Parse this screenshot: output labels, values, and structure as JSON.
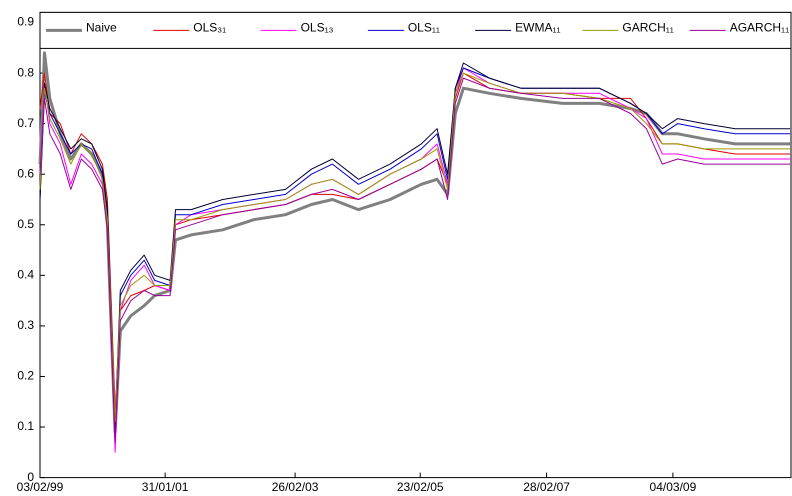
{
  "chart_data": {
    "type": "line",
    "x": [
      "03/02/99",
      "01/03/99",
      "01/04/99",
      "01/06/99",
      "01/08/99",
      "01/10/99",
      "01/12/99",
      "01/02/00",
      "01/03/00",
      "15/04/00",
      "15/05/00",
      "15/07/00",
      "01/10/00",
      "01/12/00",
      "01/03/01",
      "01/04/01",
      "01/07/01",
      "01/01/02",
      "01/07/02",
      "01/01/03",
      "01/06/03",
      "01/10/03",
      "01/03/04",
      "01/09/04",
      "01/03/05",
      "01/06/05",
      "01/08/05",
      "15/09/05",
      "01/11/05",
      "01/04/06",
      "01/10/06",
      "01/06/07",
      "01/01/08",
      "01/07/08",
      "01/10/08",
      "01/01/09",
      "01/04/09",
      "01/09/09",
      "01/03/10",
      "01/09/10",
      "15/01/11"
    ],
    "series": [
      {
        "name": "Naive",
        "color": "#808080",
        "values": [
          0.62,
          0.84,
          0.75,
          0.68,
          0.63,
          0.66,
          0.64,
          0.6,
          0.5,
          0.09,
          0.29,
          0.32,
          0.34,
          0.36,
          0.37,
          0.47,
          0.48,
          0.49,
          0.51,
          0.52,
          0.54,
          0.55,
          0.53,
          0.55,
          0.58,
          0.59,
          0.56,
          0.72,
          0.77,
          0.76,
          0.75,
          0.74,
          0.74,
          0.73,
          0.72,
          0.68,
          0.68,
          0.67,
          0.66,
          0.66,
          0.66
        ]
      },
      {
        "name": "OLS₃₁",
        "color": "#e00000",
        "values": [
          0.73,
          0.8,
          0.72,
          0.7,
          0.64,
          0.68,
          0.66,
          0.62,
          0.55,
          0.12,
          0.33,
          0.36,
          0.37,
          0.38,
          0.37,
          0.5,
          0.51,
          0.52,
          0.53,
          0.54,
          0.56,
          0.56,
          0.55,
          0.58,
          0.61,
          0.63,
          0.58,
          0.75,
          0.8,
          0.77,
          0.76,
          0.76,
          0.75,
          0.75,
          0.71,
          0.66,
          0.66,
          0.65,
          0.64,
          0.64,
          0.64
        ]
      },
      {
        "name": "OLS₁₃",
        "color": "#ff00ff",
        "values": [
          0.6,
          0.78,
          0.7,
          0.66,
          0.58,
          0.64,
          0.62,
          0.58,
          0.52,
          0.05,
          0.33,
          0.39,
          0.42,
          0.38,
          0.37,
          0.5,
          0.52,
          0.53,
          0.54,
          0.55,
          0.58,
          0.59,
          0.56,
          0.6,
          0.63,
          0.66,
          0.58,
          0.76,
          0.81,
          0.78,
          0.76,
          0.76,
          0.76,
          0.73,
          0.71,
          0.64,
          0.64,
          0.63,
          0.63,
          0.63,
          0.63
        ]
      },
      {
        "name": "OLS₁₁",
        "color": "#0000cc",
        "values": [
          0.55,
          0.76,
          0.72,
          0.68,
          0.64,
          0.66,
          0.65,
          0.6,
          0.52,
          0.08,
          0.36,
          0.4,
          0.43,
          0.39,
          0.38,
          0.52,
          0.52,
          0.54,
          0.55,
          0.56,
          0.6,
          0.62,
          0.58,
          0.61,
          0.65,
          0.68,
          0.59,
          0.77,
          0.81,
          0.79,
          0.77,
          0.77,
          0.77,
          0.74,
          0.72,
          0.68,
          0.7,
          0.69,
          0.68,
          0.68,
          0.68
        ]
      },
      {
        "name": "EWMA₁₁",
        "color": "#000033",
        "values": [
          0.55,
          0.78,
          0.73,
          0.69,
          0.65,
          0.67,
          0.66,
          0.61,
          0.53,
          0.1,
          0.37,
          0.41,
          0.44,
          0.4,
          0.39,
          0.53,
          0.53,
          0.55,
          0.56,
          0.57,
          0.61,
          0.63,
          0.59,
          0.62,
          0.66,
          0.69,
          0.6,
          0.77,
          0.82,
          0.79,
          0.77,
          0.77,
          0.77,
          0.74,
          0.72,
          0.69,
          0.71,
          0.7,
          0.69,
          0.69,
          0.69
        ]
      },
      {
        "name": "GARCH₁₁",
        "color": "#999900",
        "values": [
          0.57,
          0.77,
          0.71,
          0.67,
          0.62,
          0.66,
          0.64,
          0.59,
          0.51,
          0.11,
          0.34,
          0.38,
          0.4,
          0.38,
          0.38,
          0.51,
          0.51,
          0.53,
          0.54,
          0.55,
          0.58,
          0.59,
          0.56,
          0.6,
          0.63,
          0.65,
          0.57,
          0.76,
          0.8,
          0.78,
          0.76,
          0.76,
          0.75,
          0.73,
          0.7,
          0.66,
          0.66,
          0.65,
          0.65,
          0.65,
          0.65
        ]
      },
      {
        "name": "AGARCH₁₁",
        "color": "#990099",
        "values": [
          0.6,
          0.75,
          0.68,
          0.64,
          0.57,
          0.63,
          0.61,
          0.57,
          0.49,
          0.07,
          0.31,
          0.35,
          0.37,
          0.36,
          0.36,
          0.49,
          0.5,
          0.52,
          0.53,
          0.54,
          0.56,
          0.57,
          0.55,
          0.58,
          0.61,
          0.63,
          0.55,
          0.74,
          0.79,
          0.77,
          0.76,
          0.75,
          0.75,
          0.72,
          0.69,
          0.62,
          0.63,
          0.62,
          0.62,
          0.62,
          0.62
        ]
      }
    ],
    "xlim": [
      "03/02/99",
      "20/01/11"
    ],
    "xticks": [
      "03/02/99",
      "31/01/01",
      "26/02/03",
      "23/02/05",
      "28/02/07",
      "04/03/09"
    ],
    "ylim": [
      0,
      0.92
    ],
    "yticks": [
      0,
      0.1,
      0.2,
      0.3,
      0.4,
      0.5,
      0.6,
      0.7,
      0.8,
      0.9
    ],
    "legend": "top"
  }
}
